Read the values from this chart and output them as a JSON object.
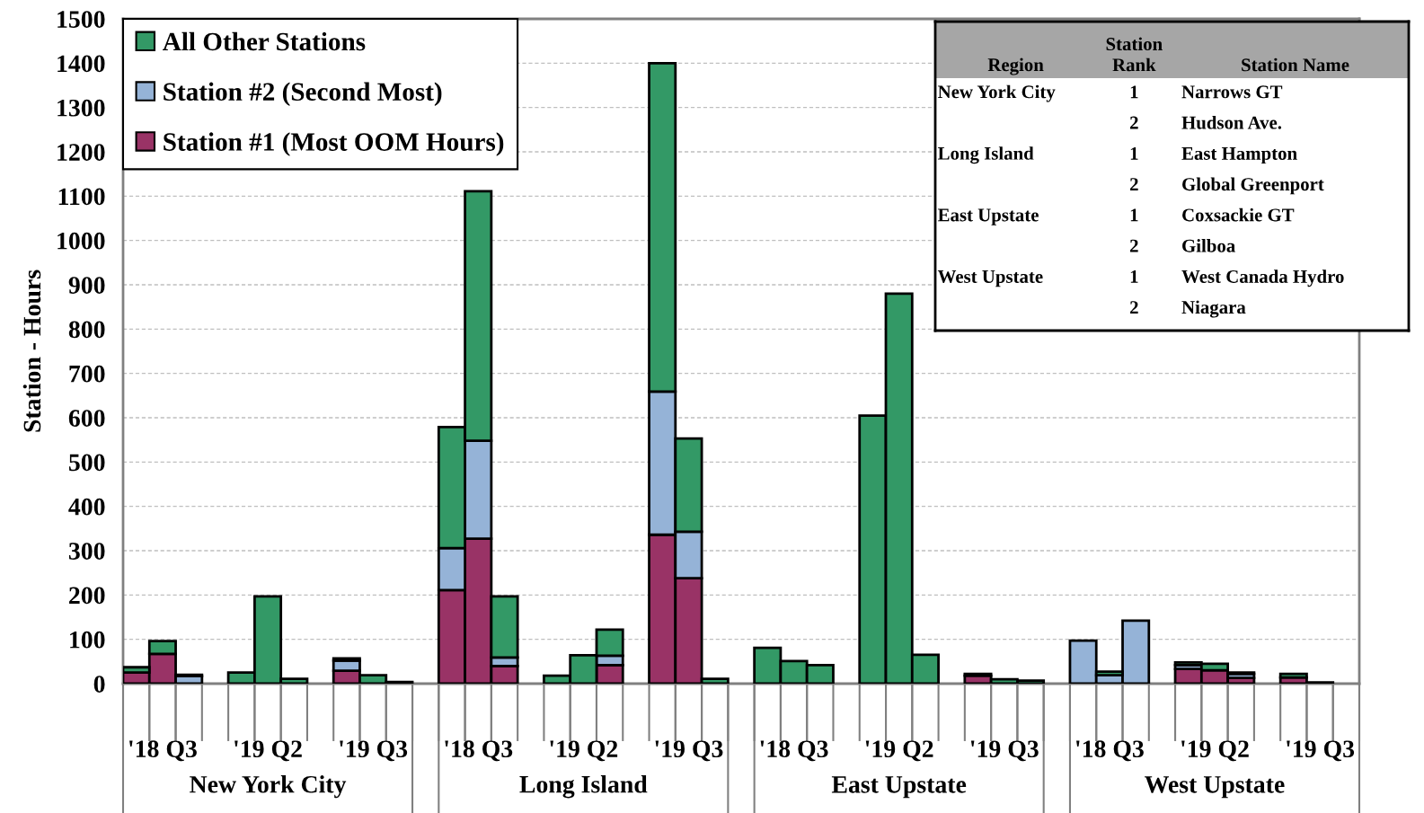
{
  "chart_data": [
    {
      "type": "bar",
      "stacked": true,
      "ylabel": "Station - Hours",
      "categories": [
        null,
        "'18 Q3",
        null,
        null,
        "'19 Q2",
        null,
        null,
        "'19 Q3",
        null,
        null,
        "'18 Q3",
        null,
        null,
        "'19 Q2",
        null,
        null,
        "'19 Q3",
        null,
        null,
        "'18 Q3",
        null,
        null,
        "'19 Q2",
        null,
        null,
        "'19 Q3",
        null,
        null,
        "'18 Q3",
        null,
        null,
        "'19 Q2",
        null,
        null,
        "'19 Q3",
        null
      ],
      "series": [
        {
          "name": "Station #1 (Most OOM Hours)",
          "color": "#993366",
          "values": [
            25,
            67,
            0,
            0,
            0,
            0,
            29,
            null,
            0,
            211,
            327,
            40,
            0,
            0,
            42,
            336,
            238,
            0,
            0,
            0,
            0,
            0,
            0,
            0,
            18,
            null,
            null,
            0,
            0,
            0,
            33,
            30,
            13,
            14,
            0,
            0
          ]
        },
        {
          "name": "Station #2 (Second Most)",
          "color": "#95b3d7",
          "values": [
            0,
            0,
            17,
            0,
            0,
            0,
            23,
            0,
            0,
            95,
            221,
            19,
            0,
            0,
            21,
            323,
            105,
            0,
            0,
            0,
            0,
            0,
            0,
            0,
            0,
            0,
            0,
            97,
            19,
            142,
            9,
            0,
            9,
            0,
            0,
            0
          ]
        },
        {
          "name": "All Other Stations",
          "color": "#339966",
          "values": [
            12,
            29,
            3,
            25,
            197,
            11,
            5,
            19,
            4,
            273,
            563,
            138,
            18,
            64,
            59,
            741,
            210,
            11,
            81,
            51,
            42,
            605,
            880,
            65,
            4,
            10,
            7,
            0,
            8,
            0,
            6,
            15,
            3,
            8,
            3,
            0
          ]
        }
      ],
      "annotations": [
        "New York City",
        "Long Island",
        "East Upstate",
        "West Upstate"
      ],
      "ylim": [
        0,
        1500
      ],
      "yticks": [
        0,
        100,
        200,
        300,
        400,
        500,
        600,
        700,
        800,
        900,
        1000,
        1100,
        1200,
        1300,
        1400,
        1500
      ],
      "grid": "y",
      "legend": "top left"
    },
    {
      "type": "other",
      "categories": [
        "Region",
        "Station\nRank",
        "Station Name"
      ],
      "cells": [
        [
          "New York City",
          "1",
          "Narrows GT"
        ],
        [
          null,
          "2",
          "Hudson Ave."
        ],
        [
          "Long Island",
          "1",
          "East Hampton"
        ],
        [
          null,
          "2",
          "Global Greenport"
        ],
        [
          "East Upstate",
          "1",
          "Coxsackie GT"
        ],
        [
          null,
          "2",
          "Gilboa"
        ],
        [
          "West Upstate",
          "1",
          "West Canada Hydro"
        ],
        [
          null,
          "2",
          "Niagara"
        ]
      ]
    }
  ]
}
